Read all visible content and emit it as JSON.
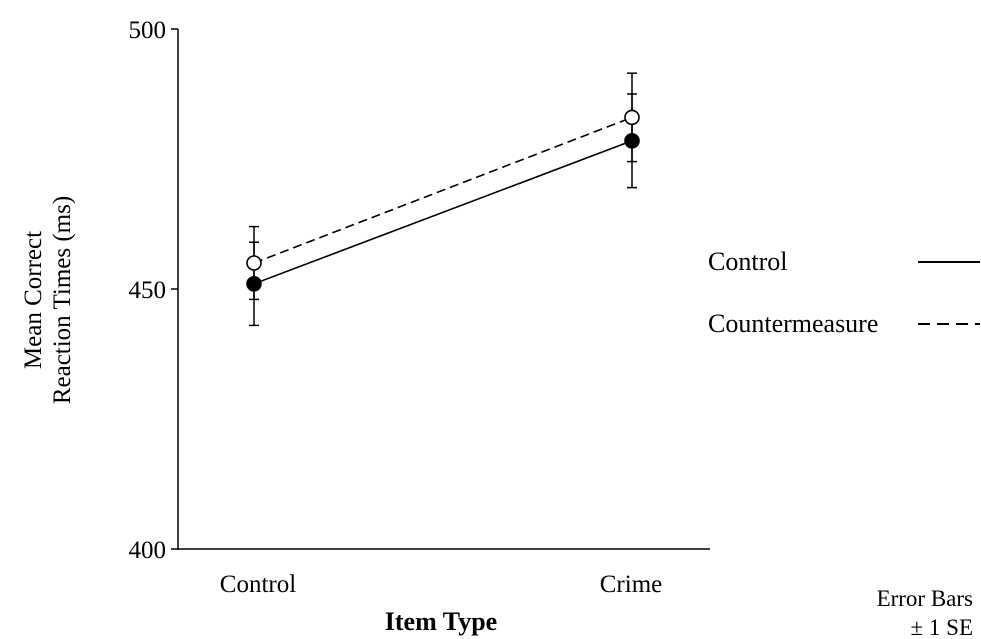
{
  "chart_data": {
    "type": "line",
    "categories": [
      "Control",
      "Crime"
    ],
    "xlabel": "Item Type",
    "ylabel_lines": [
      "Mean Correct",
      "Reaction Times (ms)"
    ],
    "ylim": [
      400,
      500
    ],
    "yticks": [
      400,
      450,
      500
    ],
    "grid": false,
    "legend_position": "right",
    "series": [
      {
        "name": "Control",
        "values": [
          451,
          478.5
        ],
        "errors": [
          8,
          9
        ],
        "line_style": "solid",
        "marker": "filled-circle",
        "color": "#000000"
      },
      {
        "name": "Countermeasure",
        "values": [
          455,
          483
        ],
        "errors": [
          7,
          8.5
        ],
        "line_style": "dashed",
        "marker": "open-circle",
        "color": "#000000"
      }
    ],
    "annotation_lines": [
      "Error Bars",
      "± 1 SE"
    ]
  }
}
